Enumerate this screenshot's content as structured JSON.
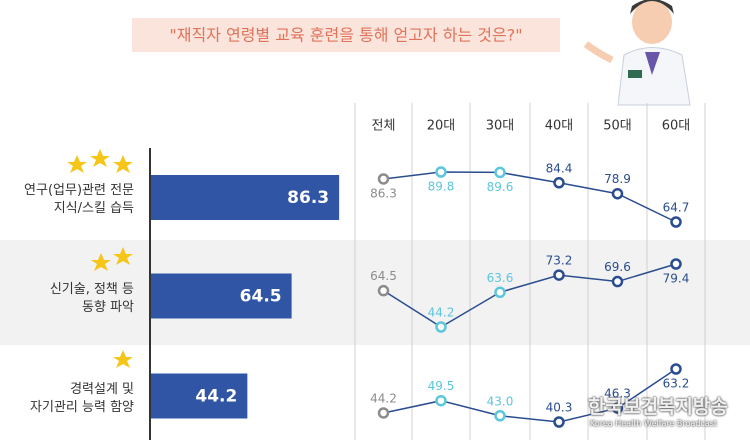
{
  "header": {
    "title": "\"재직자 연령별 교육 훈련을 통해 얻고자 하는 것은?\""
  },
  "chart_data": [
    {
      "type": "bar",
      "orientation": "horizontal",
      "categories": [
        "연구(업무)관련 전문\n지식/스킬 습득",
        "신기술, 정책 등\n동향 파악",
        "경력설계 및\n자기관리 능력 함양"
      ],
      "values": [
        86.3,
        64.5,
        44.2
      ],
      "color": "#2f55a4"
    },
    {
      "type": "line",
      "categories": [
        "전체",
        "20대",
        "30대",
        "40대",
        "50대",
        "60대"
      ],
      "color": "#2a4d8f",
      "colors": [
        "#8c8c8c",
        "#5cc6dc",
        "#5cc6dc",
        "#2a4d8f",
        "#2a4d8f",
        "#2a4d8f"
      ],
      "series": [
        {
          "values": [
            86.3,
            89.8,
            89.6,
            84.4,
            78.9,
            64.7
          ]
        },
        {
          "values": [
            64.5,
            44.2,
            63.6,
            73.2,
            69.6,
            79.4
          ]
        },
        {
          "values": [
            44.2,
            49.5,
            43.0,
            40.3,
            46.3,
            63.2
          ],
          "value_labels": [
            "44.2",
            "49.5",
            "43.0",
            "40.3",
            "46.3",
            "63.2"
          ]
        }
      ]
    }
  ],
  "watermark": {
    "title": "한국보건복지방송",
    "subtitle": "Korea Health Welfare Broadcast"
  }
}
